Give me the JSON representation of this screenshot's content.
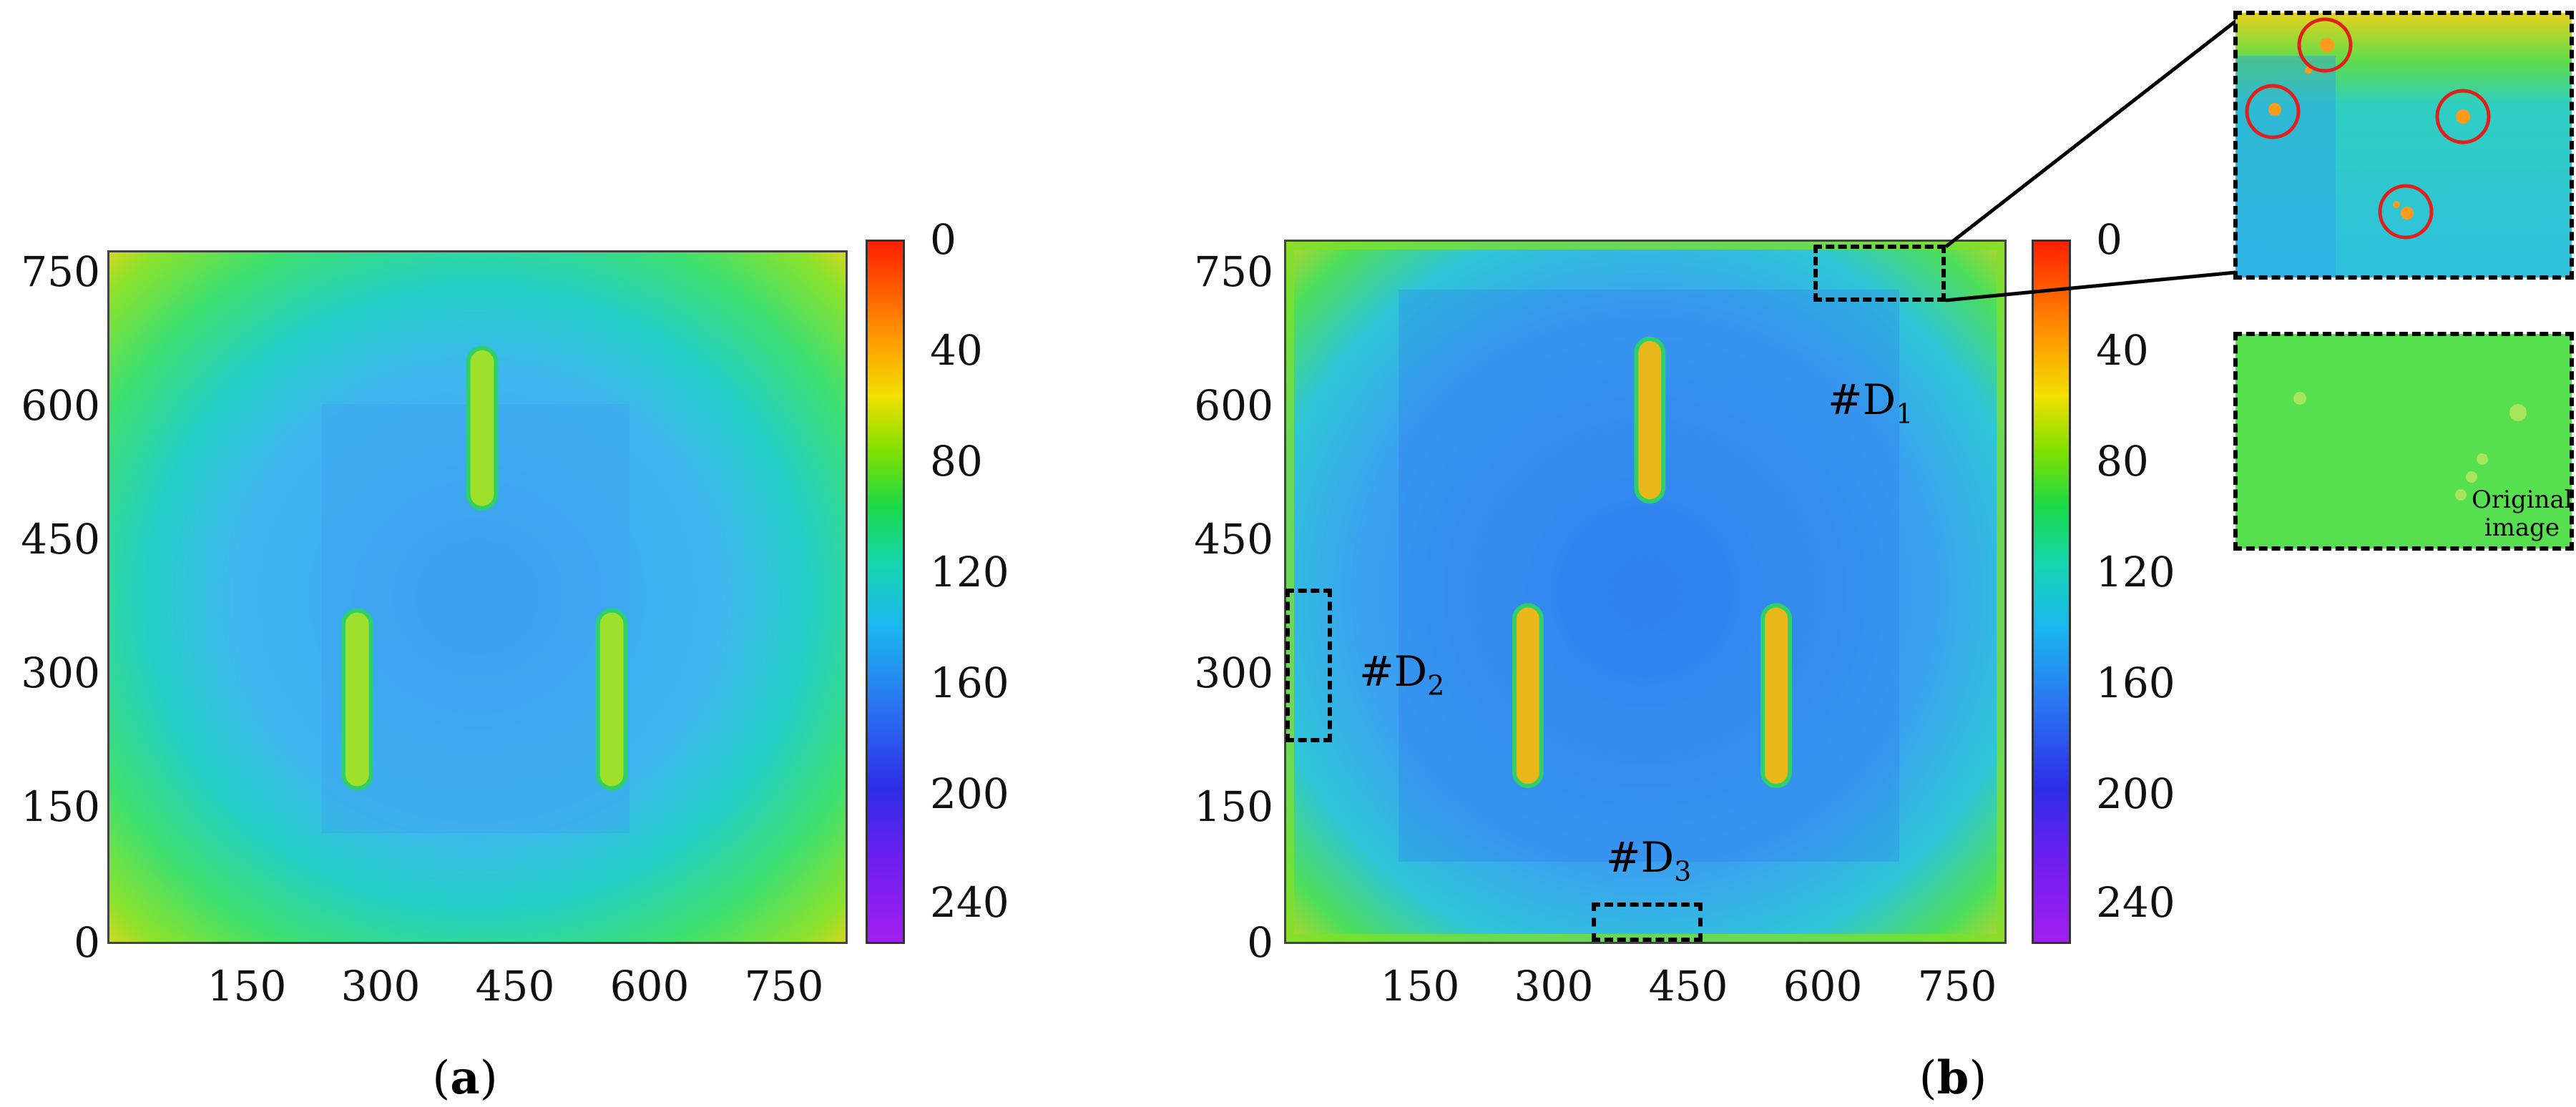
{
  "chart_data": [
    {
      "type": "heatmap",
      "panel": "(a)",
      "x_ticks": [
        "150",
        "300",
        "450",
        "600",
        "750"
      ],
      "y_ticks": [
        "750",
        "600",
        "450",
        "300",
        "150",
        "0"
      ],
      "xlim": [
        0,
        800
      ],
      "ylim": [
        0,
        780
      ],
      "colorbar_ticks": [
        "0",
        "40",
        "80",
        "120",
        "160",
        "200",
        "240"
      ],
      "colorbar_range": [
        0,
        260
      ],
      "colormap": [
        "#ff1f00",
        "#ff8a00",
        "#f3e000",
        "#7fe000",
        "#19d94a",
        "#16d7b0",
        "#1ab7f0",
        "#2a76f2",
        "#2c2de8",
        "#6b1ff0",
        "#a21ff0"
      ],
      "features": [
        {
          "kind": "slot",
          "x": [
            390,
            420
          ],
          "y": [
            490,
            670
          ]
        },
        {
          "kind": "slot",
          "x": [
            255,
            285
          ],
          "y": [
            175,
            375
          ]
        },
        {
          "kind": "slot",
          "x": [
            530,
            560
          ],
          "y": [
            175,
            375
          ]
        }
      ]
    },
    {
      "type": "heatmap",
      "panel": "(b)",
      "x_ticks": [
        "150",
        "300",
        "450",
        "600",
        "750"
      ],
      "y_ticks": [
        "750",
        "600",
        "450",
        "300",
        "150",
        "0"
      ],
      "xlim": [
        0,
        800
      ],
      "ylim": [
        0,
        780
      ],
      "colorbar_ticks": [
        "0",
        "40",
        "80",
        "120",
        "160",
        "200",
        "240"
      ],
      "colorbar_range": [
        0,
        260
      ],
      "annotations": [
        {
          "id": "D1",
          "label": "#D",
          "subscript": "1",
          "x": [
            590,
            735
          ],
          "y": [
            665,
            780
          ]
        },
        {
          "id": "D2",
          "label": "#D",
          "subscript": "2",
          "x": [
            5,
            55
          ],
          "y": [
            220,
            385
          ]
        },
        {
          "id": "D3",
          "label": "#D",
          "subscript": "3",
          "x": [
            345,
            470
          ],
          "y": [
            0,
            40
          ]
        }
      ],
      "features": [
        {
          "kind": "slot",
          "x": [
            390,
            420
          ],
          "y": [
            490,
            670
          ]
        },
        {
          "kind": "slot",
          "x": [
            255,
            285
          ],
          "y": [
            175,
            375
          ]
        },
        {
          "kind": "slot",
          "x": [
            530,
            560
          ],
          "y": [
            175,
            375
          ]
        }
      ]
    }
  ],
  "captions": {
    "a": {
      "open": "(",
      "letter": "a",
      "close": ")"
    },
    "b": {
      "open": "(",
      "letter": "b",
      "close": ")"
    }
  },
  "insets": {
    "original_label_line1": "Original",
    "original_label_line2": "image"
  }
}
